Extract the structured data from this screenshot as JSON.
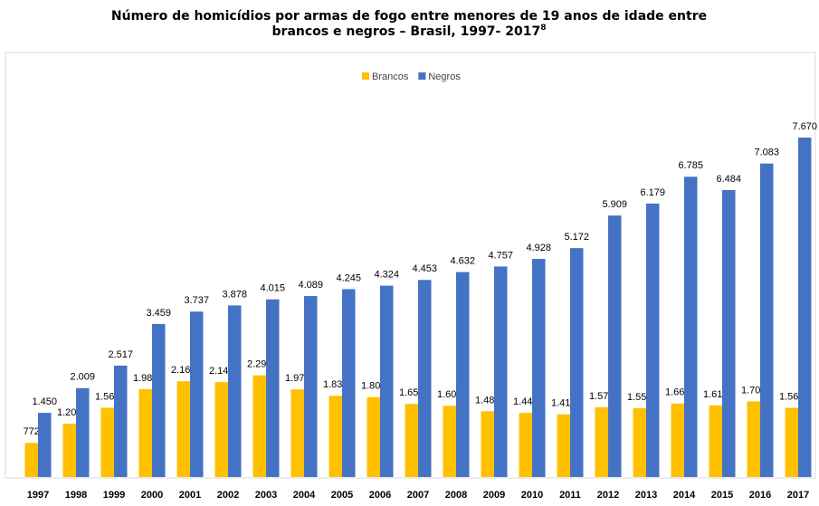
{
  "chart_data": {
    "type": "bar",
    "title": [
      "Número de homicídios por armas de fogo entre menores de 19 anos de idade entre",
      "brancos e negros – Brasil, 1997- 2017"
    ],
    "title_footnote": "8",
    "categories": [
      "1997",
      "1998",
      "1999",
      "2000",
      "2001",
      "2002",
      "2003",
      "2004",
      "2005",
      "2006",
      "2007",
      "2008",
      "2009",
      "2010",
      "2011",
      "2012",
      "2013",
      "2014",
      "2015",
      "2016",
      "2017"
    ],
    "series": [
      {
        "name": "Brancos",
        "color": "#ffc000",
        "values": [
          772,
          1205,
          1566,
          1987,
          2164,
          2145,
          2298,
          1979,
          1835,
          1806,
          1653,
          1609,
          1486,
          1449,
          1417,
          1577,
          1554,
          1661,
          1619,
          1708,
          1563
        ],
        "value_labels": [
          "772",
          "1.205",
          "1.566",
          "1.987",
          "2.164",
          "2.145",
          "2.298",
          "1.979",
          "1.835",
          "1.806",
          "1.653",
          "1.609",
          "1.486",
          "1.449",
          "1.417",
          "1.577",
          "1.554",
          "1.661",
          "1.619",
          "1.708",
          "1.563"
        ]
      },
      {
        "name": "Negros",
        "color": "#4472c4",
        "values": [
          1450,
          2009,
          2517,
          3459,
          3737,
          3878,
          4015,
          4089,
          4245,
          4324,
          4453,
          4632,
          4757,
          4928,
          5172,
          5909,
          6179,
          6785,
          6484,
          7083,
          7670
        ],
        "value_labels": [
          "1.450",
          "2.009",
          "2.517",
          "3.459",
          "3.737",
          "3.878",
          "4.015",
          "4.089",
          "4.245",
          "4.324",
          "4.453",
          "4.632",
          "4.757",
          "4.928",
          "5.172",
          "5.909",
          "6.179",
          "6.785",
          "6.484",
          "7.083",
          "7.670"
        ]
      }
    ],
    "legend": "top"
  }
}
